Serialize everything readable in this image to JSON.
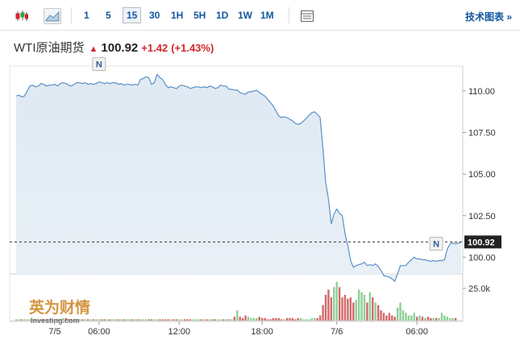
{
  "toolbar": {
    "timeframes": [
      "1",
      "5",
      "15",
      "30",
      "1H",
      "5H",
      "1D",
      "1W",
      "1M"
    ],
    "active_timeframe": "15",
    "tech_link": "技术图表 »",
    "icons": [
      "candlestick-icon",
      "area-chart-icon",
      "table-icon"
    ]
  },
  "quote": {
    "name": "WTI原油期货",
    "direction_icon": "up-arrow-icon",
    "price": "100.92",
    "change": "+1.42",
    "change_pct": "(+1.43%)",
    "change_color": "#d2262b"
  },
  "chart_data": {
    "type": "area",
    "x_tick_labels": [
      "7/5",
      "06:00",
      "12:00",
      "18:00",
      "7/6",
      "06:00"
    ],
    "y_tick_labels": [
      "110.00",
      "107.50",
      "105.00",
      "102.50",
      "100.00"
    ],
    "ylim": [
      99.0,
      111.5
    ],
    "current_value_label": "100.92",
    "current_value": 100.92,
    "event_markers": [
      {
        "label": "N",
        "x_index": 30
      },
      {
        "label": "N",
        "x_index": 152
      }
    ],
    "series": [
      {
        "values": [
          109.7,
          109.75,
          109.65,
          109.7,
          110.0,
          110.3,
          110.35,
          110.25,
          110.3,
          110.45,
          110.4,
          110.3,
          110.35,
          110.35,
          110.4,
          110.3,
          110.45,
          110.5,
          110.45,
          110.35,
          110.3,
          110.4,
          110.5,
          110.5,
          110.45,
          110.5,
          110.4,
          110.45,
          110.4,
          110.45,
          110.55,
          110.5,
          110.45,
          110.5,
          110.45,
          110.5,
          110.5,
          110.4,
          110.45,
          110.35,
          110.4,
          110.4,
          110.35,
          110.4,
          110.35,
          110.7,
          110.75,
          110.85,
          110.8,
          110.4,
          110.5,
          111.0,
          110.8,
          110.7,
          110.4,
          110.2,
          110.25,
          110.2,
          110.15,
          110.3,
          110.35,
          110.3,
          110.25,
          110.15,
          110.2,
          110.25,
          110.25,
          110.2,
          110.25,
          110.2,
          110.3,
          110.25,
          110.15,
          110.2,
          110.35,
          110.3,
          110.3,
          110.1,
          110.1,
          110.05,
          110.05,
          109.9,
          109.85,
          109.8,
          109.95,
          109.95,
          110.0,
          110.05,
          109.9,
          109.8,
          109.7,
          109.5,
          109.3,
          109.1,
          108.8,
          108.5,
          108.4,
          108.45,
          108.4,
          108.3,
          108.2,
          108.05,
          108.0,
          108.05,
          108.2,
          108.35,
          108.55,
          108.7,
          108.75,
          108.6,
          108.4,
          106.5,
          104.5,
          103.5,
          102.0,
          102.6,
          102.9,
          102.65,
          102.5,
          101.4,
          100.7,
          99.8,
          99.4,
          99.5,
          99.55,
          99.6,
          99.7,
          99.5,
          99.55,
          99.5,
          99.6,
          99.45,
          99.2,
          98.9,
          98.85,
          98.8,
          98.7,
          98.55,
          99.0,
          99.5,
          99.5,
          99.5,
          99.7,
          99.85,
          100.0,
          99.9,
          99.9,
          99.85,
          99.85,
          99.8,
          99.75,
          99.8,
          99.75,
          99.8,
          99.8,
          99.85,
          100.5,
          100.8,
          100.85,
          100.8,
          100.85,
          100.92
        ]
      }
    ],
    "volume_tick_label": "25.0k",
    "volume": [
      1,
      1,
      1,
      1,
      1,
      1,
      1,
      1,
      1,
      1,
      1,
      1,
      1,
      1,
      1,
      1,
      1,
      2,
      2,
      1,
      1,
      1,
      1,
      1,
      1,
      1,
      1,
      1,
      1,
      1,
      1,
      1,
      1,
      1,
      1,
      1,
      1,
      1,
      1,
      1,
      1,
      1,
      1,
      1,
      1,
      1,
      1,
      1,
      1,
      1,
      1,
      1,
      1,
      1,
      1,
      1,
      1,
      1,
      1,
      1,
      1,
      1,
      1,
      1,
      1,
      1,
      1,
      1,
      1,
      1,
      1,
      1,
      1,
      1,
      1,
      1,
      1,
      1,
      1,
      3,
      8,
      3,
      2,
      4,
      3,
      2,
      2,
      2,
      3,
      2,
      2,
      1,
      1,
      2,
      2,
      2,
      1,
      1,
      2,
      2,
      2,
      1,
      2,
      2,
      1,
      1,
      1,
      2,
      2,
      2,
      4,
      12,
      20,
      24,
      18,
      26,
      30,
      26,
      18,
      20,
      17,
      18,
      14,
      16,
      24,
      22,
      20,
      14,
      22,
      18,
      14,
      12,
      8,
      6,
      4,
      6,
      4,
      3,
      10,
      14,
      8,
      6,
      4,
      4,
      6,
      3,
      4,
      3,
      2,
      3,
      2,
      2,
      2,
      2,
      6,
      4,
      3,
      2,
      2,
      2
    ],
    "volume_colors": [
      "#d26a6a",
      "#8fcf96"
    ]
  },
  "watermark": {
    "text": "英为财情",
    "subtext": "Investing.com"
  }
}
